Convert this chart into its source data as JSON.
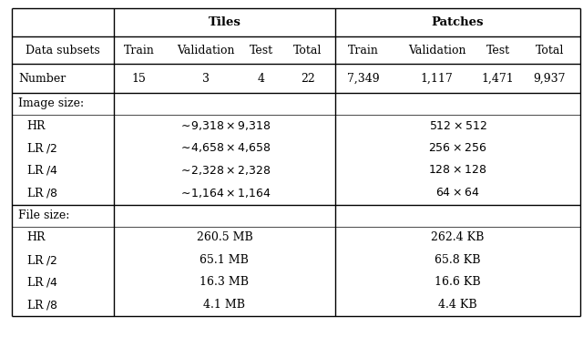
{
  "bg_color": "#ffffff",
  "tl": 0.02,
  "tr": 0.995,
  "tt": 0.975,
  "tb": 0.03,
  "c0r": 0.195,
  "tdiv": 0.575,
  "fs_base": 9.0,
  "lw_heavy": 1.0,
  "lw_light": 0.5,
  "tiles_header": "Tiles",
  "patches_header": "Patches",
  "col_headers": [
    "Data subsets",
    "Train",
    "Validation",
    "Test",
    "Total"
  ],
  "number_row": {
    "label": "Number",
    "tiles": [
      "15",
      "3",
      "4",
      "22"
    ],
    "patches": [
      "7,349",
      "1,117",
      "1,471",
      "9,937"
    ]
  },
  "image_size_label": "Image size:",
  "image_size_rows": [
    {
      "label": "HR",
      "tiles": "\\sim\\!9{,}318\\times 9{,}318",
      "patches": "512\\times 512"
    },
    {
      "label": "LR /2",
      "tiles": "\\sim\\!4{,}658\\times 4{,}658",
      "patches": "256\\times 256"
    },
    {
      "label": "LR /4",
      "tiles": "\\sim\\!2{,}328\\times 2{,}328",
      "patches": "128\\times 128"
    },
    {
      "label": "LR /8",
      "tiles": "\\sim\\!1{,}164\\times 1{,}164",
      "patches": "64\\times 64"
    }
  ],
  "file_size_label": "File size:",
  "file_size_rows": [
    {
      "label": "HR",
      "tiles": "260.5 MB",
      "patches": "262.4 KB"
    },
    {
      "label": "LR /2",
      "tiles": "65.1 MB",
      "patches": "65.8 KB"
    },
    {
      "label": "LR /4",
      "tiles": "16.3 MB",
      "patches": "16.6 KB"
    },
    {
      "label": "LR /8",
      "tiles": "4.1 MB",
      "patches": "4.4 KB"
    }
  ]
}
